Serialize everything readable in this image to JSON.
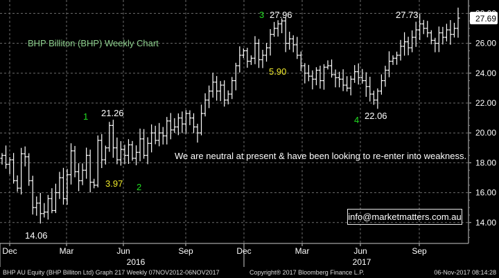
{
  "chart_data": {
    "type": "ohlc",
    "title": "BHP Billiton (BHP) Weekly Chart",
    "comment": "We are neutral at present & have been looking to re-enter into weakness.",
    "last_price": "27.69",
    "ylim": [
      12.6,
      28.9
    ],
    "y_ticks": [
      "14.00",
      "16.00",
      "18.00",
      "20.00",
      "22.00",
      "24.00",
      "26.00",
      "28.00"
    ],
    "x_month_labels": [
      "Dec",
      "Mar",
      "Jun",
      "Sep",
      "Dec",
      "Mar",
      "Jun",
      "Sep"
    ],
    "x_year_labels": [
      "2016",
      "2017"
    ],
    "weekly_closes": [
      18.5,
      17.9,
      18.2,
      16.8,
      16.3,
      18.6,
      18.4,
      16.8,
      15.0,
      15.3,
      14.6,
      14.7,
      15.6,
      14.8,
      16.0,
      17.0,
      15.6,
      17.2,
      18.8,
      17.4,
      16.8,
      17.5,
      18.5,
      16.7,
      16.5,
      19.5,
      18.2,
      19.0,
      20.5,
      19.0,
      18.2,
      18.9,
      18.5,
      19.2,
      18.3,
      18.7,
      19.6,
      18.5,
      19.3,
      20.0,
      19.5,
      20.0,
      19.8,
      20.8,
      20.2,
      20.4,
      21.0,
      20.6,
      21.3,
      21.0,
      20.4,
      20.0,
      21.3,
      22.2,
      22.8,
      23.4,
      22.8,
      23.2,
      22.2,
      22.6,
      23.5,
      24.5,
      25.2,
      25.5,
      24.8,
      25.0,
      26.0,
      24.9,
      25.2,
      25.7,
      26.6,
      27.0,
      27.3,
      27.5,
      26.0,
      26.3,
      25.9,
      25.2,
      24.5,
      24.0,
      23.8,
      23.6,
      24.2,
      23.5,
      24.4,
      24.5,
      23.9,
      23.7,
      23.6,
      23.2,
      23.0,
      23.6,
      24.1,
      23.7,
      23.5,
      23.1,
      22.6,
      22.2,
      22.8,
      23.5,
      24.2,
      24.8,
      25.0,
      25.2,
      25.8,
      26.1,
      25.7,
      26.4,
      26.9,
      27.3,
      27.0,
      26.7,
      26.2,
      26.0,
      26.7,
      26.4,
      26.9,
      26.6,
      27.0,
      27.69
    ],
    "annotations": [
      {
        "text": "14.06",
        "kind": "price"
      },
      {
        "text": "1",
        "kind": "wave"
      },
      {
        "text": "21.26",
        "kind": "price"
      },
      {
        "text": "3.97",
        "kind": "move"
      },
      {
        "text": "2",
        "kind": "wave"
      },
      {
        "text": "3",
        "kind": "wave"
      },
      {
        "text": "27.96",
        "kind": "price"
      },
      {
        "text": "5.90",
        "kind": "move"
      },
      {
        "text": "4",
        "kind": "wave"
      },
      {
        "text": "22.06",
        "kind": "price"
      },
      {
        "text": "27.73",
        "kind": "price"
      }
    ],
    "colors": {
      "bars": "#ffffff",
      "grid": "#6e6e6e",
      "title": "#8ed08e",
      "wave": "#22dd22",
      "move": "#f0ea2a",
      "price": "#ffffff",
      "axis_bg": "#000000"
    }
  },
  "email": "info@marketmatters.com.au",
  "footer": {
    "left": "BHP AU Equity (BHP Billiton Ltd) Graph 217  Weekly 07NOV2012-06NOV2017",
    "center": "Copyright® 2017 Bloomberg Finance L.P.",
    "right": "06-Nov-2017 08:14:28"
  }
}
